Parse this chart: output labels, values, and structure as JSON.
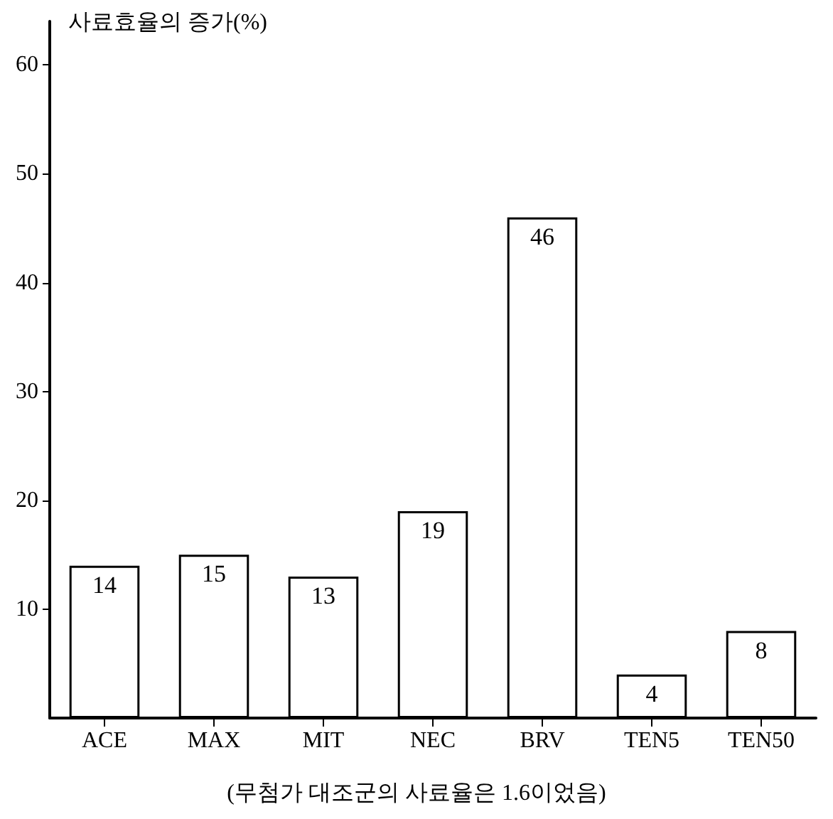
{
  "chart_data": {
    "type": "bar",
    "ylabel": "사료효율의 증가(%)",
    "xlabel": "(무첨가 대조군의 사료율은 1.6이었음)",
    "categories": [
      "ACE",
      "MAX",
      "MIT",
      "NEC",
      "BRV",
      "TEN5",
      "TEN50"
    ],
    "values": [
      14,
      15,
      13,
      19,
      46,
      4,
      8
    ],
    "color": "#ffffff",
    "ylim": [
      0,
      64
    ],
    "yticks": [
      10,
      20,
      30,
      40,
      50,
      60
    ],
    "grid": false,
    "data_labels": true
  }
}
